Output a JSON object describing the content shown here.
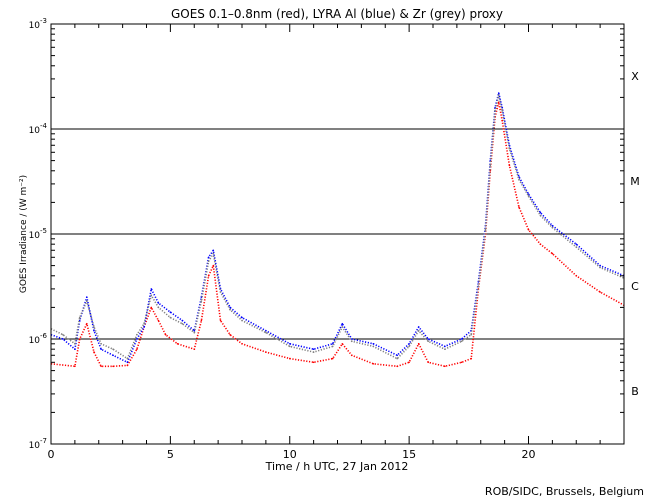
{
  "chart_data": {
    "type": "line",
    "title": "GOES 0.1–0.8nm (red), LYRA Al (blue) & Zr (grey) proxy",
    "xlabel": "Time / h UTC, 27 Jan 2012",
    "ylabel": "GOES Irradiance / (W m⁻²)",
    "xlim": [
      0,
      24
    ],
    "ylim": [
      1e-07,
      0.001
    ],
    "yscale": "log",
    "x_ticks": [
      0,
      5,
      10,
      15,
      20
    ],
    "x_tick_labels": [
      "0",
      "5",
      "10",
      "15",
      "20"
    ],
    "y_tick_labels": [
      {
        "base": "10",
        "exp": "-7",
        "value": 1e-07
      },
      {
        "base": "10",
        "exp": "-6",
        "value": 1e-06
      },
      {
        "base": "10",
        "exp": "-5",
        "value": 1e-05
      },
      {
        "base": "10",
        "exp": "-4",
        "value": 0.0001
      },
      {
        "base": "10",
        "exp": "-3",
        "value": 0.001
      }
    ],
    "flare_class_lines": [
      1e-06,
      1e-05,
      0.0001
    ],
    "flare_class_labels": [
      {
        "label": "X",
        "value": 0.00032
      },
      {
        "label": "M",
        "value": 3.2e-05
      },
      {
        "label": "C",
        "value": 3.2e-06
      },
      {
        "label": "B",
        "value": 3.2e-07
      }
    ],
    "series": [
      {
        "name": "GOES 0.1–0.8nm",
        "color": "#ff0000",
        "x": [
          0,
          1.0,
          1.2,
          1.5,
          1.8,
          2.1,
          2.6,
          3.2,
          3.6,
          3.9,
          4.2,
          4.5,
          4.8,
          5.3,
          6.0,
          6.3,
          6.6,
          6.8,
          7.1,
          7.5,
          8.0,
          9.0,
          10.0,
          11.0,
          11.8,
          12.2,
          12.6,
          13.5,
          14.5,
          15.0,
          15.4,
          15.8,
          16.5,
          17.2,
          17.6,
          17.9,
          18.2,
          18.4,
          18.6,
          18.75,
          18.9,
          19.2,
          19.6,
          20.0,
          20.5,
          21.0,
          22.0,
          23.0,
          24.0
        ],
        "values": [
          5.8e-07,
          5.5e-07,
          1e-06,
          1.4e-06,
          7.5e-07,
          5.5e-07,
          5.5e-07,
          5.6e-07,
          8e-07,
          1.3e-06,
          2e-06,
          1.5e-06,
          1.1e-06,
          9e-07,
          8e-07,
          1.5e-06,
          4e-06,
          5e-06,
          1.5e-06,
          1.1e-06,
          9e-07,
          7.5e-07,
          6.5e-07,
          6e-07,
          6.5e-07,
          9e-07,
          7e-07,
          5.8e-07,
          5.5e-07,
          6e-07,
          9e-07,
          6e-07,
          5.5e-07,
          6e-07,
          6.5e-07,
          3e-06,
          1e-05,
          4e-05,
          0.00013,
          0.00018,
          0.00012,
          4.5e-05,
          1.8e-05,
          1.1e-05,
          8e-06,
          6.5e-06,
          4e-06,
          2.8e-06,
          2.1e-06
        ]
      },
      {
        "name": "LYRA Al proxy",
        "color": "#0000ff",
        "x": [
          0,
          0.5,
          1.0,
          1.2,
          1.5,
          1.8,
          2.1,
          2.6,
          3.2,
          3.6,
          3.9,
          4.2,
          4.5,
          5.0,
          5.5,
          6.0,
          6.3,
          6.6,
          6.8,
          7.1,
          7.5,
          8.0,
          9.0,
          10.0,
          11.0,
          11.8,
          12.2,
          12.6,
          13.5,
          14.5,
          15.0,
          15.4,
          15.8,
          16.5,
          17.2,
          17.6,
          17.9,
          18.2,
          18.4,
          18.6,
          18.75,
          18.9,
          19.2,
          19.6,
          20.0,
          20.5,
          21.0,
          22.0,
          23.0,
          24.0
        ],
        "values": [
          1.1e-06,
          1e-06,
          8e-07,
          1.5e-06,
          2.5e-06,
          1.2e-06,
          8e-07,
          7e-07,
          6e-07,
          1e-06,
          1.3e-06,
          3e-06,
          2.2e-06,
          1.8e-06,
          1.5e-06,
          1.2e-06,
          2.5e-06,
          6e-06,
          7e-06,
          3e-06,
          2e-06,
          1.6e-06,
          1.2e-06,
          9e-07,
          8e-07,
          9e-07,
          1.4e-06,
          1e-06,
          9e-07,
          7e-07,
          9e-07,
          1.3e-06,
          1e-06,
          8.5e-07,
          1e-06,
          1.2e-06,
          3.5e-06,
          1.2e-05,
          5e-05,
          0.00016,
          0.00022,
          0.00016,
          7e-05,
          3.5e-05,
          2.4e-05,
          1.6e-05,
          1.2e-05,
          8e-06,
          5e-06,
          4e-06
        ]
      },
      {
        "name": "LYRA Zr proxy",
        "color": "#808080",
        "x": [
          0,
          0.5,
          1.0,
          1.2,
          1.5,
          1.8,
          2.1,
          2.6,
          3.2,
          3.6,
          3.9,
          4.2,
          4.5,
          5.0,
          5.5,
          6.0,
          6.3,
          6.6,
          6.8,
          7.1,
          7.5,
          8.0,
          9.0,
          10.0,
          11.0,
          11.8,
          12.2,
          12.6,
          13.5,
          14.5,
          15.0,
          15.4,
          15.8,
          16.5,
          17.2,
          17.6,
          17.9,
          18.2,
          18.4,
          18.6,
          18.75,
          18.9,
          19.2,
          19.6,
          20.0,
          20.5,
          21.0,
          22.0,
          23.0,
          24.0
        ],
        "values": [
          1.25e-06,
          1.1e-06,
          9e-07,
          1.6e-06,
          2.3e-06,
          1.3e-06,
          9e-07,
          8e-07,
          6.5e-07,
          1.1e-06,
          1.4e-06,
          2.6e-06,
          2e-06,
          1.6e-06,
          1.4e-06,
          1.15e-06,
          2.3e-06,
          5.5e-06,
          6.5e-06,
          2.8e-06,
          1.9e-06,
          1.5e-06,
          1.15e-06,
          8.5e-07,
          7.5e-07,
          8.5e-07,
          1.3e-06,
          9.5e-07,
          8.5e-07,
          6.5e-07,
          8.5e-07,
          1.2e-06,
          9.5e-07,
          8e-07,
          9.5e-07,
          1.1e-06,
          3.2e-06,
          1.1e-05,
          4.5e-05,
          0.00015,
          0.00021,
          0.00015,
          6.5e-05,
          3.3e-05,
          2.3e-05,
          1.5e-05,
          1.15e-05,
          7.5e-06,
          4.8e-06,
          3.8e-06
        ]
      }
    ],
    "credit": "ROB/SIDC, Brussels, Belgium"
  }
}
